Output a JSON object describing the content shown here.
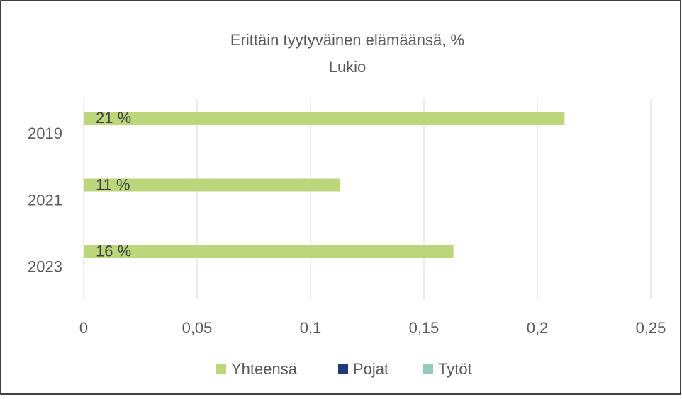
{
  "chart_data": {
    "type": "bar",
    "orientation": "horizontal",
    "title": "Erittäin tyytyväinen elämäänsä, %",
    "subtitle": "Lukio",
    "categories": [
      "2019",
      "2021",
      "2023"
    ],
    "series": [
      {
        "name": "Yhteensä",
        "color": "#bcd67c",
        "values": [
          0.212,
          0.113,
          0.163
        ],
        "value_labels": [
          "21 %",
          "11 %",
          "16 %"
        ]
      },
      {
        "name": "Pojat",
        "color": "#1f3b7d",
        "values": [
          null,
          null,
          null
        ]
      },
      {
        "name": "Tytöt",
        "color": "#94c9bb",
        "values": [
          null,
          null,
          null
        ]
      }
    ],
    "xlim": [
      0,
      0.25
    ],
    "xticks": [
      0,
      {
        "value": 0.05,
        "label": "0,05"
      },
      {
        "value": 0.1,
        "label": "0,1"
      },
      {
        "value": 0.15,
        "label": "0,15"
      },
      {
        "value": 0.2,
        "label": "0,2"
      },
      {
        "value": 0.25,
        "label": "0,25"
      }
    ],
    "grid": true,
    "legend": "bottom"
  }
}
